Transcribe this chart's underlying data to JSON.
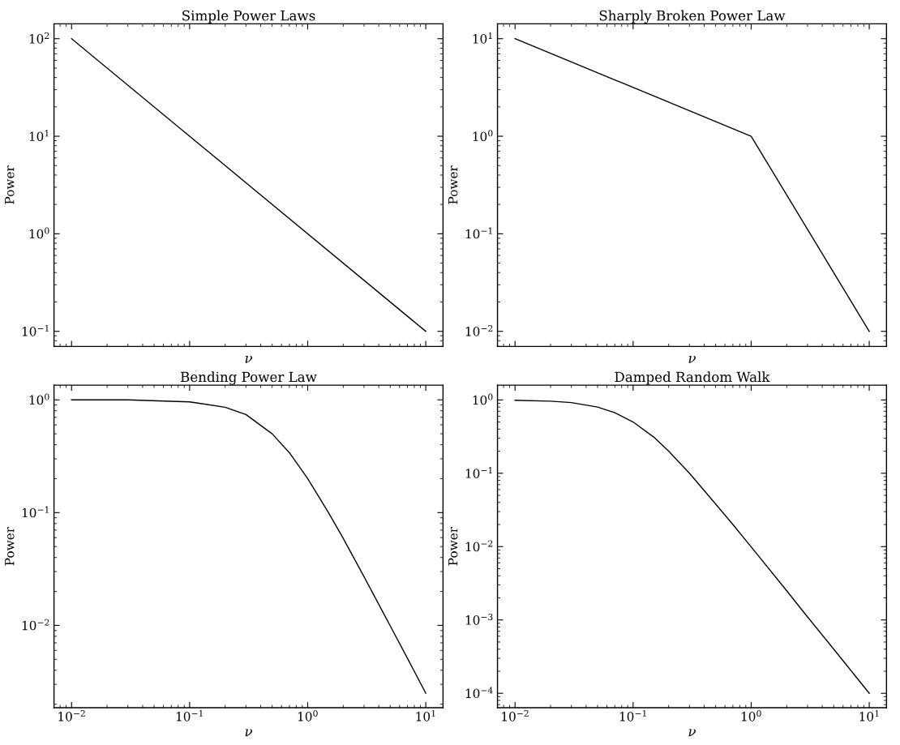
{
  "chart_data": [
    {
      "type": "line",
      "title": "Simple Power Laws",
      "xlabel": "ν",
      "ylabel": "Power",
      "log": "xy",
      "tick_labels": "y",
      "x": [
        0.01,
        10
      ],
      "series": [
        {
          "color": "#000000",
          "values": [
            100,
            0.1
          ]
        }
      ],
      "xlim": [
        0.0071,
        14
      ],
      "ylim": [
        0.07,
        142
      ],
      "xticks": [
        {
          "value": 0.01,
          "label": null
        },
        {
          "value": 0.1,
          "label": null
        },
        {
          "value": 1,
          "label": null
        },
        {
          "value": 10,
          "label": null
        }
      ],
      "yticks": [
        {
          "value": 0.1,
          "label": "10$^{−1}$"
        },
        {
          "value": 1,
          "label": "10$^{0}$"
        },
        {
          "value": 10,
          "label": "10$^{1}$"
        },
        {
          "value": 100,
          "label": "10$^{2}$"
        }
      ]
    },
    {
      "type": "line",
      "title": "Sharply Broken Power Law",
      "xlabel": "ν",
      "ylabel": "Power",
      "log": "xy",
      "tick_labels": "y",
      "x": [
        0.01,
        1,
        10
      ],
      "series": [
        {
          "color": "#000000",
          "values": [
            10,
            1,
            0.01
          ]
        }
      ],
      "xlim": [
        0.0071,
        14
      ],
      "ylim": [
        0.007,
        14.2
      ],
      "xticks": [
        {
          "value": 0.01,
          "label": null
        },
        {
          "value": 0.1,
          "label": null
        },
        {
          "value": 1,
          "label": null
        },
        {
          "value": 10,
          "label": null
        }
      ],
      "yticks": [
        {
          "value": 0.01,
          "label": "10$^{−2}$"
        },
        {
          "value": 0.1,
          "label": "10$^{−1}$"
        },
        {
          "value": 1,
          "label": "10$^{0}$"
        },
        {
          "value": 10,
          "label": "10$^{1}$"
        }
      ]
    },
    {
      "type": "line",
      "title": "Bending Power Law",
      "xlabel": "ν",
      "ylabel": "Power",
      "log": "xy",
      "x": [
        0.01,
        0.03,
        0.1,
        0.2,
        0.3,
        0.5,
        0.7,
        1,
        1.5,
        2,
        3,
        5,
        7,
        10
      ],
      "series": [
        {
          "color": "#000000",
          "values": [
            1,
            1,
            0.96,
            0.86,
            0.74,
            0.5,
            0.34,
            0.2,
            0.1,
            0.059,
            0.027,
            0.0099,
            0.0051,
            0.0025
          ]
        }
      ],
      "xlim": [
        0.0071,
        14
      ],
      "ylim": [
        0.00186,
        1.35
      ],
      "xticks": [
        {
          "value": 0.01,
          "label": "10$^{−2}$"
        },
        {
          "value": 0.1,
          "label": "10$^{−1}$"
        },
        {
          "value": 1,
          "label": "10$^{0}$"
        },
        {
          "value": 10,
          "label": "10$^{1}$"
        }
      ],
      "yticks": [
        {
          "value": 0.01,
          "label": "10$^{−2}$"
        },
        {
          "value": 0.1,
          "label": "10$^{−1}$"
        },
        {
          "value": 1,
          "label": "10$^{0}$"
        }
      ]
    },
    {
      "type": "line",
      "title": "Damped Random Walk",
      "xlabel": "ν",
      "ylabel": "Power",
      "log": "xy",
      "x": [
        0.01,
        0.02,
        0.03,
        0.05,
        0.07,
        0.1,
        0.15,
        0.2,
        0.3,
        0.5,
        0.7,
        1,
        2,
        3,
        5,
        10
      ],
      "series": [
        {
          "color": "#000000",
          "values": [
            0.99,
            0.96,
            0.92,
            0.8,
            0.67,
            0.5,
            0.31,
            0.2,
            0.1,
            0.038,
            0.02,
            0.0099,
            0.0025,
            0.0011,
            0.0004,
            0.0001
          ]
        }
      ],
      "xlim": [
        0.0071,
        14
      ],
      "ylim": [
        6.35e-05,
        1.59
      ],
      "xticks": [
        {
          "value": 0.01,
          "label": "10$^{−2}$"
        },
        {
          "value": 0.1,
          "label": "10$^{−1}$"
        },
        {
          "value": 1,
          "label": "10$^{0}$"
        },
        {
          "value": 10,
          "label": "10$^{1}$"
        }
      ],
      "yticks": [
        {
          "value": 0.0001,
          "label": "10$^{−4}$"
        },
        {
          "value": 0.001,
          "label": "10$^{−3}$"
        },
        {
          "value": 0.01,
          "label": "10$^{−2}$"
        },
        {
          "value": 0.1,
          "label": "10$^{−1}$"
        },
        {
          "value": 1,
          "label": "10$^{0}$"
        }
      ]
    }
  ]
}
